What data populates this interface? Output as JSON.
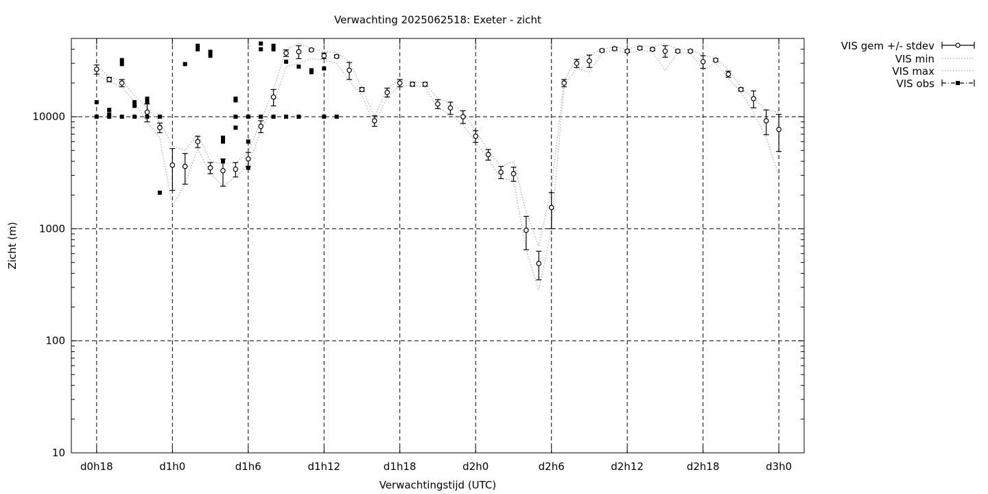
{
  "chart_data": {
    "type": "scatter",
    "title": "Verwachting 2025062518: Exeter - zicht",
    "xlabel": "Verwachtingstijd (UTC)",
    "ylabel": "Zicht (m)",
    "y_scale": "log",
    "ylim": [
      10,
      50000
    ],
    "xlim": [
      -2,
      56
    ],
    "y_ticks": [
      10,
      100,
      1000,
      10000
    ],
    "y_tick_labels": [
      "10",
      "100",
      "1000",
      "10000"
    ],
    "x_ticks": [
      0,
      6,
      12,
      18,
      24,
      30,
      36,
      42,
      48,
      54
    ],
    "x_tick_labels": [
      "d0h18",
      "d1h0",
      "d1h6",
      "d1h12",
      "d1h18",
      "d2h0",
      "d2h6",
      "d2h12",
      "d2h18",
      "d3h0"
    ],
    "grid": true,
    "legend_position": "outside-top-right",
    "legend": [
      "VIS gem +/- stdev",
      "VIS min",
      "VIS max",
      "VIS obs"
    ],
    "series": [
      {
        "name": "VIS gem +/- stdev",
        "x": [
          0,
          1,
          2,
          4,
          5,
          6,
          7,
          8,
          9,
          10,
          11,
          12,
          13,
          14,
          15,
          16,
          17,
          18,
          19,
          20,
          21,
          22,
          23,
          24,
          25,
          26,
          27,
          28,
          29,
          30,
          31,
          32,
          33,
          34,
          35,
          36,
          37,
          38,
          39,
          40,
          41,
          42,
          43,
          44,
          45,
          46,
          47,
          48,
          49,
          50,
          51,
          52,
          53,
          54
        ],
        "y": [
          26500,
          21500,
          20000,
          11000,
          8000,
          3700,
          3600,
          6000,
          3500,
          3300,
          3400,
          4200,
          8200,
          15000,
          37000,
          38000,
          39500,
          35000,
          34500,
          26000,
          17500,
          9200,
          16500,
          20000,
          19500,
          19500,
          13000,
          12000,
          10000,
          6700,
          4600,
          3200,
          3100,
          970,
          490,
          1550,
          20000,
          30000,
          31500,
          39000,
          40500,
          38500,
          41000,
          40000,
          38500,
          38500,
          38500,
          31000,
          32000,
          24000,
          17500,
          14500,
          9200,
          7700
        ],
        "yerr": [
          2500,
          1000,
          1500,
          2000,
          800,
          1500,
          1100,
          700,
          400,
          900,
          500,
          600,
          1000,
          2500,
          2500,
          5000,
          1000,
          2000,
          1000,
          4500,
          700,
          1000,
          1500,
          1500,
          800,
          800,
          1200,
          1500,
          1300,
          800,
          500,
          400,
          450,
          320,
          140,
          550,
          1500,
          2500,
          4000,
          1000,
          1200,
          1000,
          1200,
          1000,
          4500,
          1000,
          1000,
          4000,
          1000,
          1500,
          600,
          2500,
          2300,
          2800
        ]
      },
      {
        "name": "VIS min",
        "x": [
          0,
          1,
          2,
          3,
          4,
          5,
          6,
          7,
          8,
          9,
          10,
          11,
          12,
          13,
          14,
          15,
          16,
          17,
          18,
          19,
          20,
          21,
          22,
          23,
          24,
          25,
          26,
          27,
          28,
          29,
          30,
          31,
          32,
          33,
          34,
          35,
          36,
          37,
          38,
          39,
          40,
          41,
          42,
          43,
          44,
          45,
          46,
          47,
          48,
          49,
          50,
          51,
          52,
          53,
          54
        ],
        "y": [
          24000,
          20500,
          18500,
          13500,
          9000,
          6500,
          1600,
          2500,
          5200,
          3100,
          2400,
          2900,
          3700,
          7500,
          13000,
          28000,
          30000,
          33000,
          32000,
          30000,
          21000,
          15500,
          8500,
          15000,
          19000,
          19000,
          18500,
          12000,
          10500,
          8500,
          5900,
          4200,
          2800,
          2700,
          650,
          280,
          1000,
          19000,
          27000,
          25000,
          37000,
          39000,
          37000,
          39000,
          38000,
          26000,
          37000,
          37000,
          26000,
          30000,
          22000,
          16500,
          11000,
          6500,
          3000
        ]
      },
      {
        "name": "VIS max",
        "x": [
          0,
          1,
          2,
          3,
          4,
          5,
          6,
          7,
          8,
          9,
          10,
          11,
          12,
          13,
          14,
          15,
          16,
          17,
          18,
          19,
          20,
          21,
          22,
          23,
          24,
          25,
          26,
          27,
          28,
          29,
          30,
          31,
          32,
          33,
          34,
          35,
          36,
          37,
          38,
          39,
          40,
          41,
          42,
          43,
          44,
          45,
          46,
          47,
          48,
          49,
          50,
          51,
          52,
          53,
          54
        ],
        "y": [
          29000,
          22500,
          21000,
          15500,
          12000,
          9000,
          5500,
          5000,
          7000,
          4000,
          3800,
          3900,
          4800,
          9200,
          17500,
          40000,
          45000,
          41000,
          38000,
          37500,
          31000,
          18000,
          10000,
          18000,
          21500,
          20500,
          20000,
          14500,
          13500,
          11000,
          7500,
          5000,
          3600,
          4000,
          1400,
          700,
          2300,
          21000,
          33000,
          35000,
          40000,
          42000,
          40000,
          43000,
          42000,
          45000,
          40000,
          40000,
          35000,
          34000,
          26000,
          18500,
          14500,
          11500,
          11000
        ]
      },
      {
        "name": "VIS obs",
        "x": [
          0,
          0,
          1,
          1,
          1,
          2,
          2,
          2,
          3,
          3,
          3,
          4,
          4,
          4,
          5,
          5,
          6,
          7,
          8,
          8,
          9,
          9,
          10,
          10,
          10,
          11,
          11,
          11,
          11,
          12,
          12,
          12,
          13,
          13,
          13,
          14,
          14,
          14,
          15,
          15,
          16,
          16,
          17,
          17,
          18,
          18,
          19
        ],
        "y": [
          13500,
          10000,
          11500,
          10500,
          10000,
          32000,
          29500,
          10000,
          13500,
          12500,
          10000,
          14500,
          13500,
          10000,
          2100,
          10000,
          3700,
          29500,
          43000,
          40000,
          38000,
          35000,
          4000,
          6500,
          6000,
          14500,
          14000,
          10000,
          8000,
          6000,
          3500,
          10000,
          45000,
          40000,
          10000,
          43000,
          40000,
          10000,
          31000,
          10000,
          28000,
          10000,
          26000,
          25000,
          27000,
          10000,
          10000
        ]
      }
    ]
  }
}
